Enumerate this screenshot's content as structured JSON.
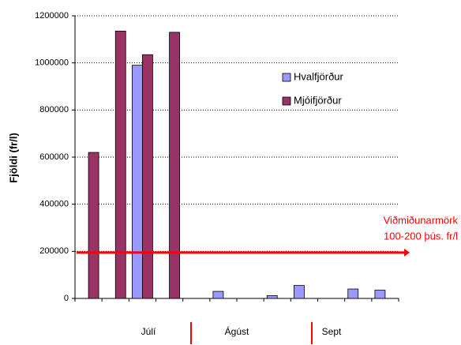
{
  "chart_data": {
    "type": "bar",
    "y_label": "Fjöldi (fr/l)",
    "categories": [
      null,
      null,
      null,
      null,
      null,
      null,
      null,
      null,
      null,
      null,
      null,
      null
    ],
    "series": [
      {
        "name": "Hvalfjörður",
        "color": "#9999ff",
        "values": [
          null,
          null,
          990000,
          null,
          null,
          30000,
          null,
          12000,
          55000,
          null,
          40000,
          35000
        ]
      },
      {
        "name": "Mjóifjörður",
        "color": "#993366",
        "values": [
          620000,
          1135000,
          1035000,
          1130000,
          null,
          null,
          null,
          null,
          null,
          null,
          null,
          null
        ]
      }
    ],
    "ylim": [
      0,
      1200000
    ],
    "yticks": [
      0,
      200000,
      400000,
      600000,
      800000,
      1000000,
      1200000
    ],
    "grid": true,
    "x_groups": [
      "Júlí",
      "Ágúst",
      "Sept"
    ],
    "reference_line": {
      "value": 195000,
      "color": "#ff0000",
      "label_lines": [
        "Viðmiðunarmörk",
        "100-200 þús. fr/l"
      ]
    }
  }
}
